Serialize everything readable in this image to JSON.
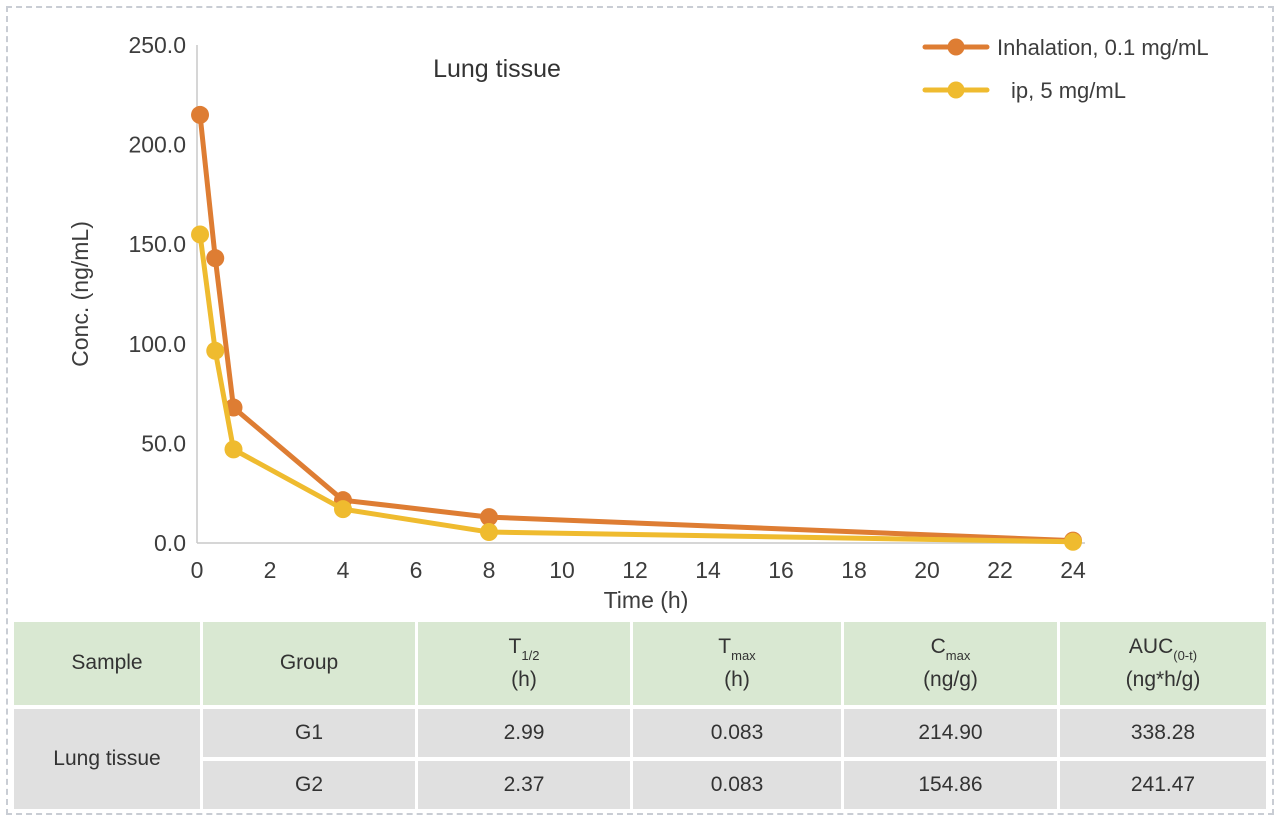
{
  "chart_data": {
    "type": "line",
    "title": "Lung tissue",
    "xlabel": "Time (h)",
    "ylabel": "Conc. (ng/mL)",
    "xlim": [
      0,
      24
    ],
    "ylim": [
      0,
      250
    ],
    "xticks": [
      0,
      2,
      4,
      6,
      8,
      10,
      12,
      14,
      16,
      18,
      20,
      22,
      24
    ],
    "ytick_labels": [
      "0.0",
      "50.0",
      "100.0",
      "150.0",
      "200.0",
      "250.0"
    ],
    "grid": false,
    "legend_position": "top-right",
    "axis_color": "#c9c9c9",
    "text_color": "#3d3d3d",
    "series": [
      {
        "name": "Inhalation, 0.1 mg/mL",
        "color": "#DE7D33",
        "x": [
          0.083,
          0.5,
          1,
          4,
          8,
          24
        ],
        "values": [
          214.9,
          143.0,
          68.0,
          21.5,
          13.0,
          1.2
        ]
      },
      {
        "name": "ip, 5 mg/mL",
        "color": "#EFBB2F",
        "x": [
          0.083,
          0.5,
          1,
          4,
          8,
          24
        ],
        "values": [
          154.9,
          96.5,
          47.0,
          17.0,
          5.5,
          0.6
        ]
      }
    ]
  },
  "table": {
    "header_bg": "#d9e8d2",
    "body_bg": "#e0e0e0",
    "columns": [
      {
        "main": "Sample",
        "sub": "",
        "unit": ""
      },
      {
        "main": "Group",
        "sub": "",
        "unit": ""
      },
      {
        "main": "T",
        "sub": "1/2",
        "unit": "(h)"
      },
      {
        "main": "T",
        "sub": "max",
        "unit": "(h)"
      },
      {
        "main": "C",
        "sub": "max",
        "unit": "(ng/g)"
      },
      {
        "main": "AUC",
        "sub": "(0-t)",
        "unit": "(ng*h/g)"
      }
    ],
    "sample_label": "Lung tissue",
    "rows": [
      {
        "group": "G1",
        "t_half": "2.99",
        "t_max": "0.083",
        "c_max": "214.90",
        "auc": "338.28"
      },
      {
        "group": "G2",
        "t_half": "2.37",
        "t_max": "0.083",
        "c_max": "154.86",
        "auc": "241.47"
      }
    ]
  }
}
